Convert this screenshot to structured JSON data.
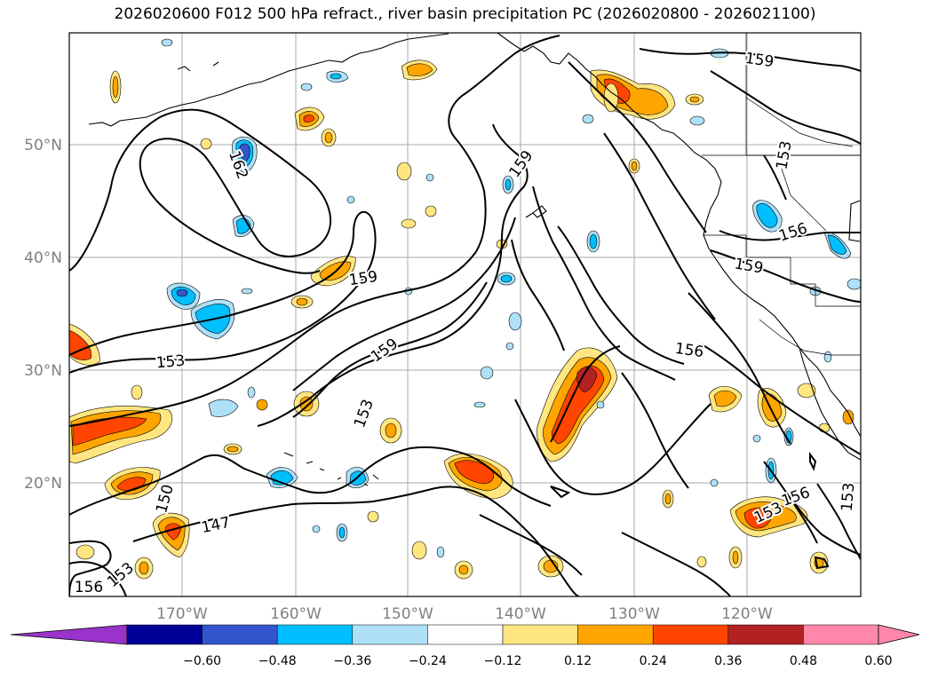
{
  "title": "2026020600 F012 500 hPa refract., river basin precipitation PC (2026020800 - 2026021100)",
  "lat_labels": [
    "50°N",
    "40°N",
    "30°N",
    "20°N"
  ],
  "lon_labels": [
    "170°W",
    "160°W",
    "150°W",
    "140°W",
    "130°W",
    "120°W"
  ],
  "contour_labels": [
    "159",
    "162",
    "159",
    "159",
    "159",
    "153",
    "150",
    "147",
    "153",
    "156",
    "156",
    "159",
    "156",
    "153",
    "156",
    "153",
    "153",
    "153"
  ],
  "colorbar": {
    "ticks": [
      "−0.60",
      "−0.48",
      "−0.36",
      "−0.24",
      "−0.12",
      "0.12",
      "0.24",
      "0.36",
      "0.48",
      "0.60"
    ],
    "colors": [
      "#9933cc",
      "#000099",
      "#3355cc",
      "#00bfff",
      "#aee0f8",
      "#ffffff",
      "#ffe680",
      "#ffa500",
      "#ff4500",
      "#b22222",
      "#ff88aa",
      "#ff88aa"
    ]
  },
  "colors": {
    "contour": "#000000",
    "grid": "#aaaaaa",
    "coast": "#000000"
  }
}
